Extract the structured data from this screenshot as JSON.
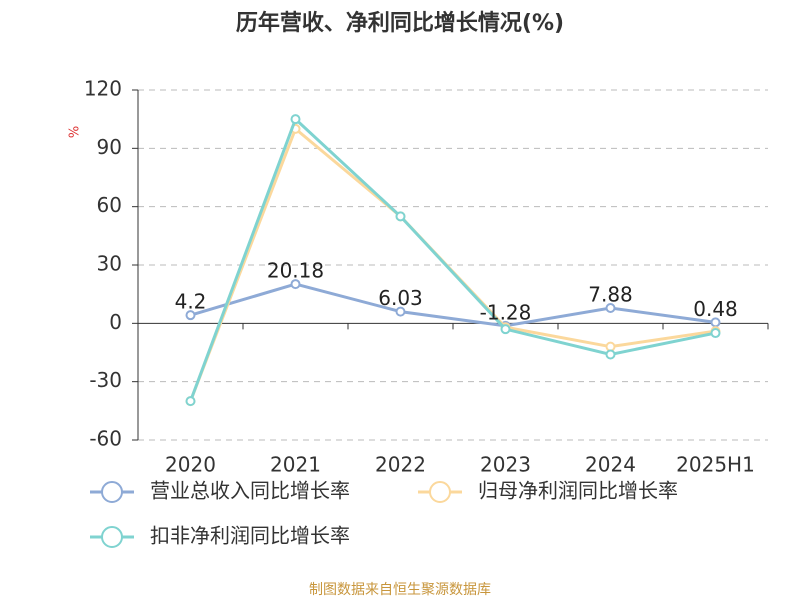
{
  "chart_data": {
    "type": "line",
    "title": "历年营收、净利同比增长情况(%)",
    "y_label": "%",
    "categories": [
      "2020",
      "2021",
      "2022",
      "2023",
      "2024",
      "2025H1"
    ],
    "series": [
      {
        "name": "营业总收入同比增长率",
        "color": "#8eaad6",
        "values": [
          4.2,
          20.18,
          6.03,
          -1.28,
          7.88,
          0.48
        ],
        "data_labels": true
      },
      {
        "name": "归母净利润同比增长率",
        "color": "#fbd89c",
        "values": [
          -40,
          100,
          55,
          -2,
          -12,
          -4
        ]
      },
      {
        "name": "扣非净利润同比增长率",
        "color": "#7fd3d0",
        "values": [
          -40,
          105,
          55,
          -3,
          -16,
          -5
        ]
      }
    ],
    "ylim": [
      -60,
      120
    ],
    "yticks": [
      -60,
      -30,
      0,
      30,
      60,
      90,
      120
    ],
    "grid": true,
    "legend": "bottom",
    "source": "制图数据来自恒生聚源数据库"
  }
}
